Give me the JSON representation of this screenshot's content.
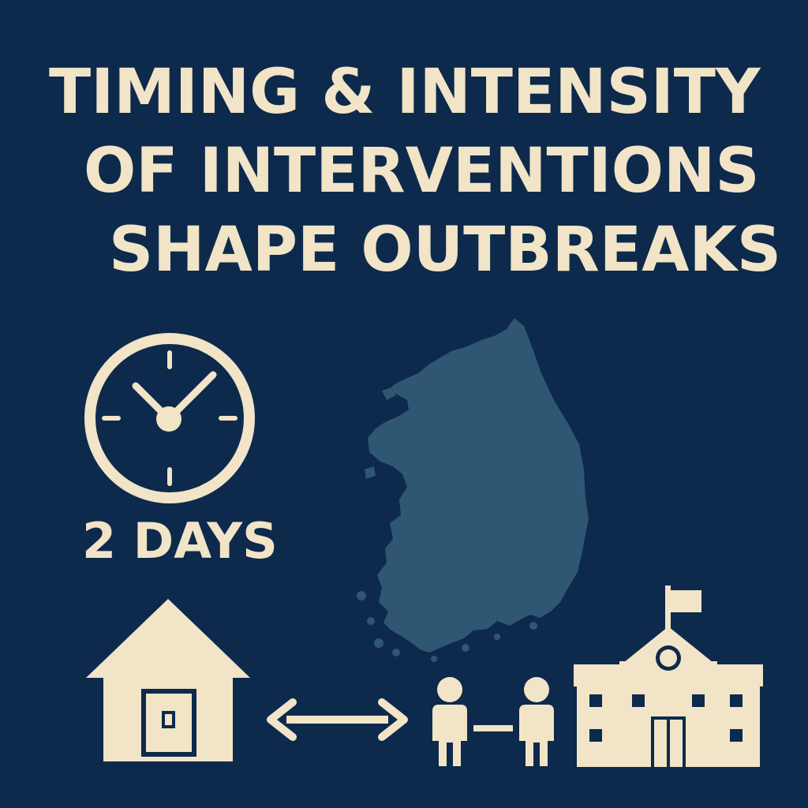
{
  "title": {
    "line1": "TIMING & INTENSITY",
    "line2": "OF INTERVENTIONS",
    "line3": "SHAPE OUTBREAKS"
  },
  "duration_label": "2 DAYS",
  "icons": {
    "timer": "clock-icon",
    "region": "south-korea-map",
    "household": "house-icon",
    "exchange": "double-arrow-icon",
    "distancing": "people-distancing-icon",
    "school": "school-icon"
  },
  "colors": {
    "background": "#0d2a4c",
    "foreground": "#f1e4c7",
    "map_fill": "#2f5672"
  }
}
